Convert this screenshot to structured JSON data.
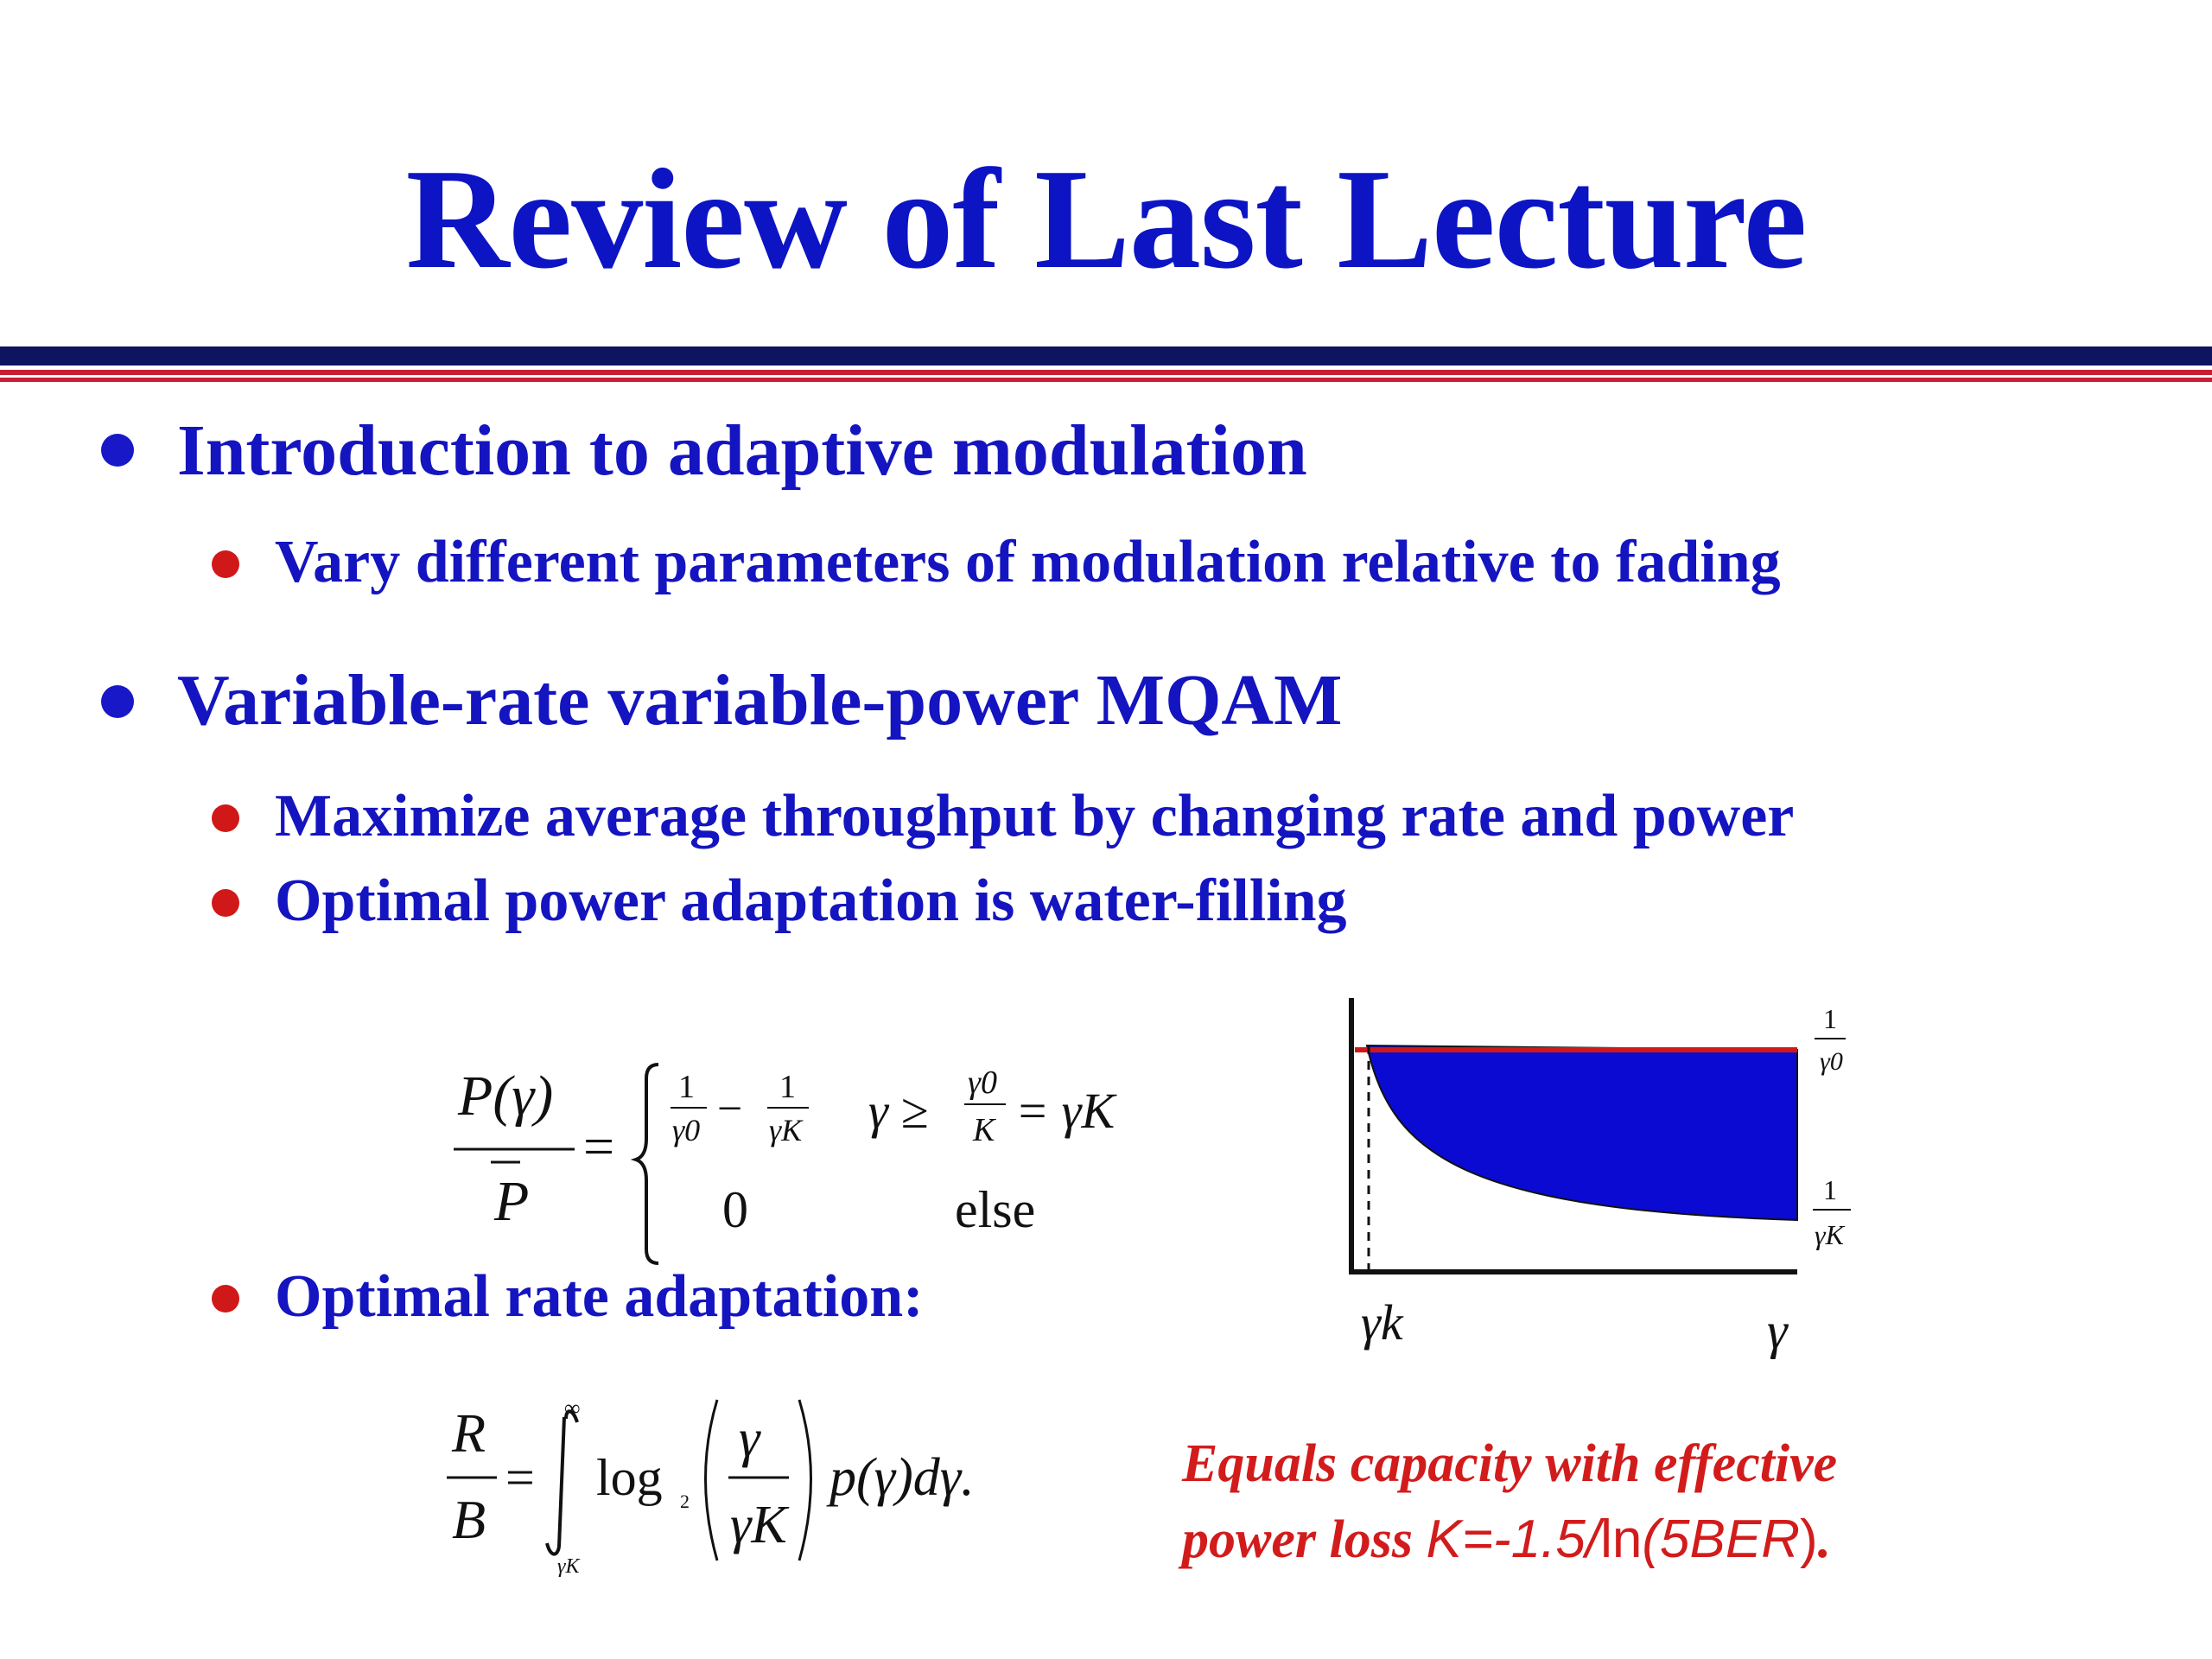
{
  "title": "Review of Last Lecture",
  "bullets": {
    "b1": "Introduction to adaptive modulation",
    "b1_1": "Vary different parameters of modulation relative to fading",
    "b2": "Variable-rate variable-power MQAM",
    "b2_1": "Maximize average throughput by changing rate and power",
    "b2_2": "Optimal power adaptation is water-filling",
    "b2_3": "Optimal rate adaptation:"
  },
  "power_formula": {
    "lhs_num": "P(γ)",
    "lhs_den": "P",
    "equals": "=",
    "case1_a_num": "1",
    "case1_a_den": "γ0",
    "minus": "−",
    "case1_b_num": "1",
    "case1_b_den": "γK",
    "case1_cond_gamma": "γ ≥",
    "case1_cond_num": "γ0",
    "case1_cond_den": "K",
    "case1_cond_rhs": "= γK",
    "case2_value": "0",
    "case2_cond": "else"
  },
  "rate_formula": {
    "lhs_num": "R",
    "lhs_den": "B",
    "equals": "=",
    "upper_limit": "∞",
    "lower_limit": "γK",
    "log": "log",
    "log_base": "2",
    "frac_num": "γ",
    "frac_den": "γK",
    "tail": "p(γ)dγ."
  },
  "graph": {
    "y_label_top_num": "1",
    "y_label_top_den": "γ0",
    "y_label_bottom_num": "1",
    "y_label_bottom_den": "γK",
    "x_label_left": "γk",
    "x_label_right": "γ",
    "fill_color": "#0a0ad2",
    "line_color": "#d01818"
  },
  "note": {
    "line1": "Equals capacity with effective",
    "line2_italic": "power loss ",
    "line2_formula_a": "K=-1.5/",
    "line2_ln": "ln",
    "line2_formula_b": "(5BER",
    "line2_close": ")",
    "line2_end": "."
  },
  "colors": {
    "title": "#0c14c4",
    "bullet_text": "#1414c0",
    "note": "#d21c1c",
    "rule_navy": "#0e1460",
    "rule_red": "#c81e32"
  }
}
